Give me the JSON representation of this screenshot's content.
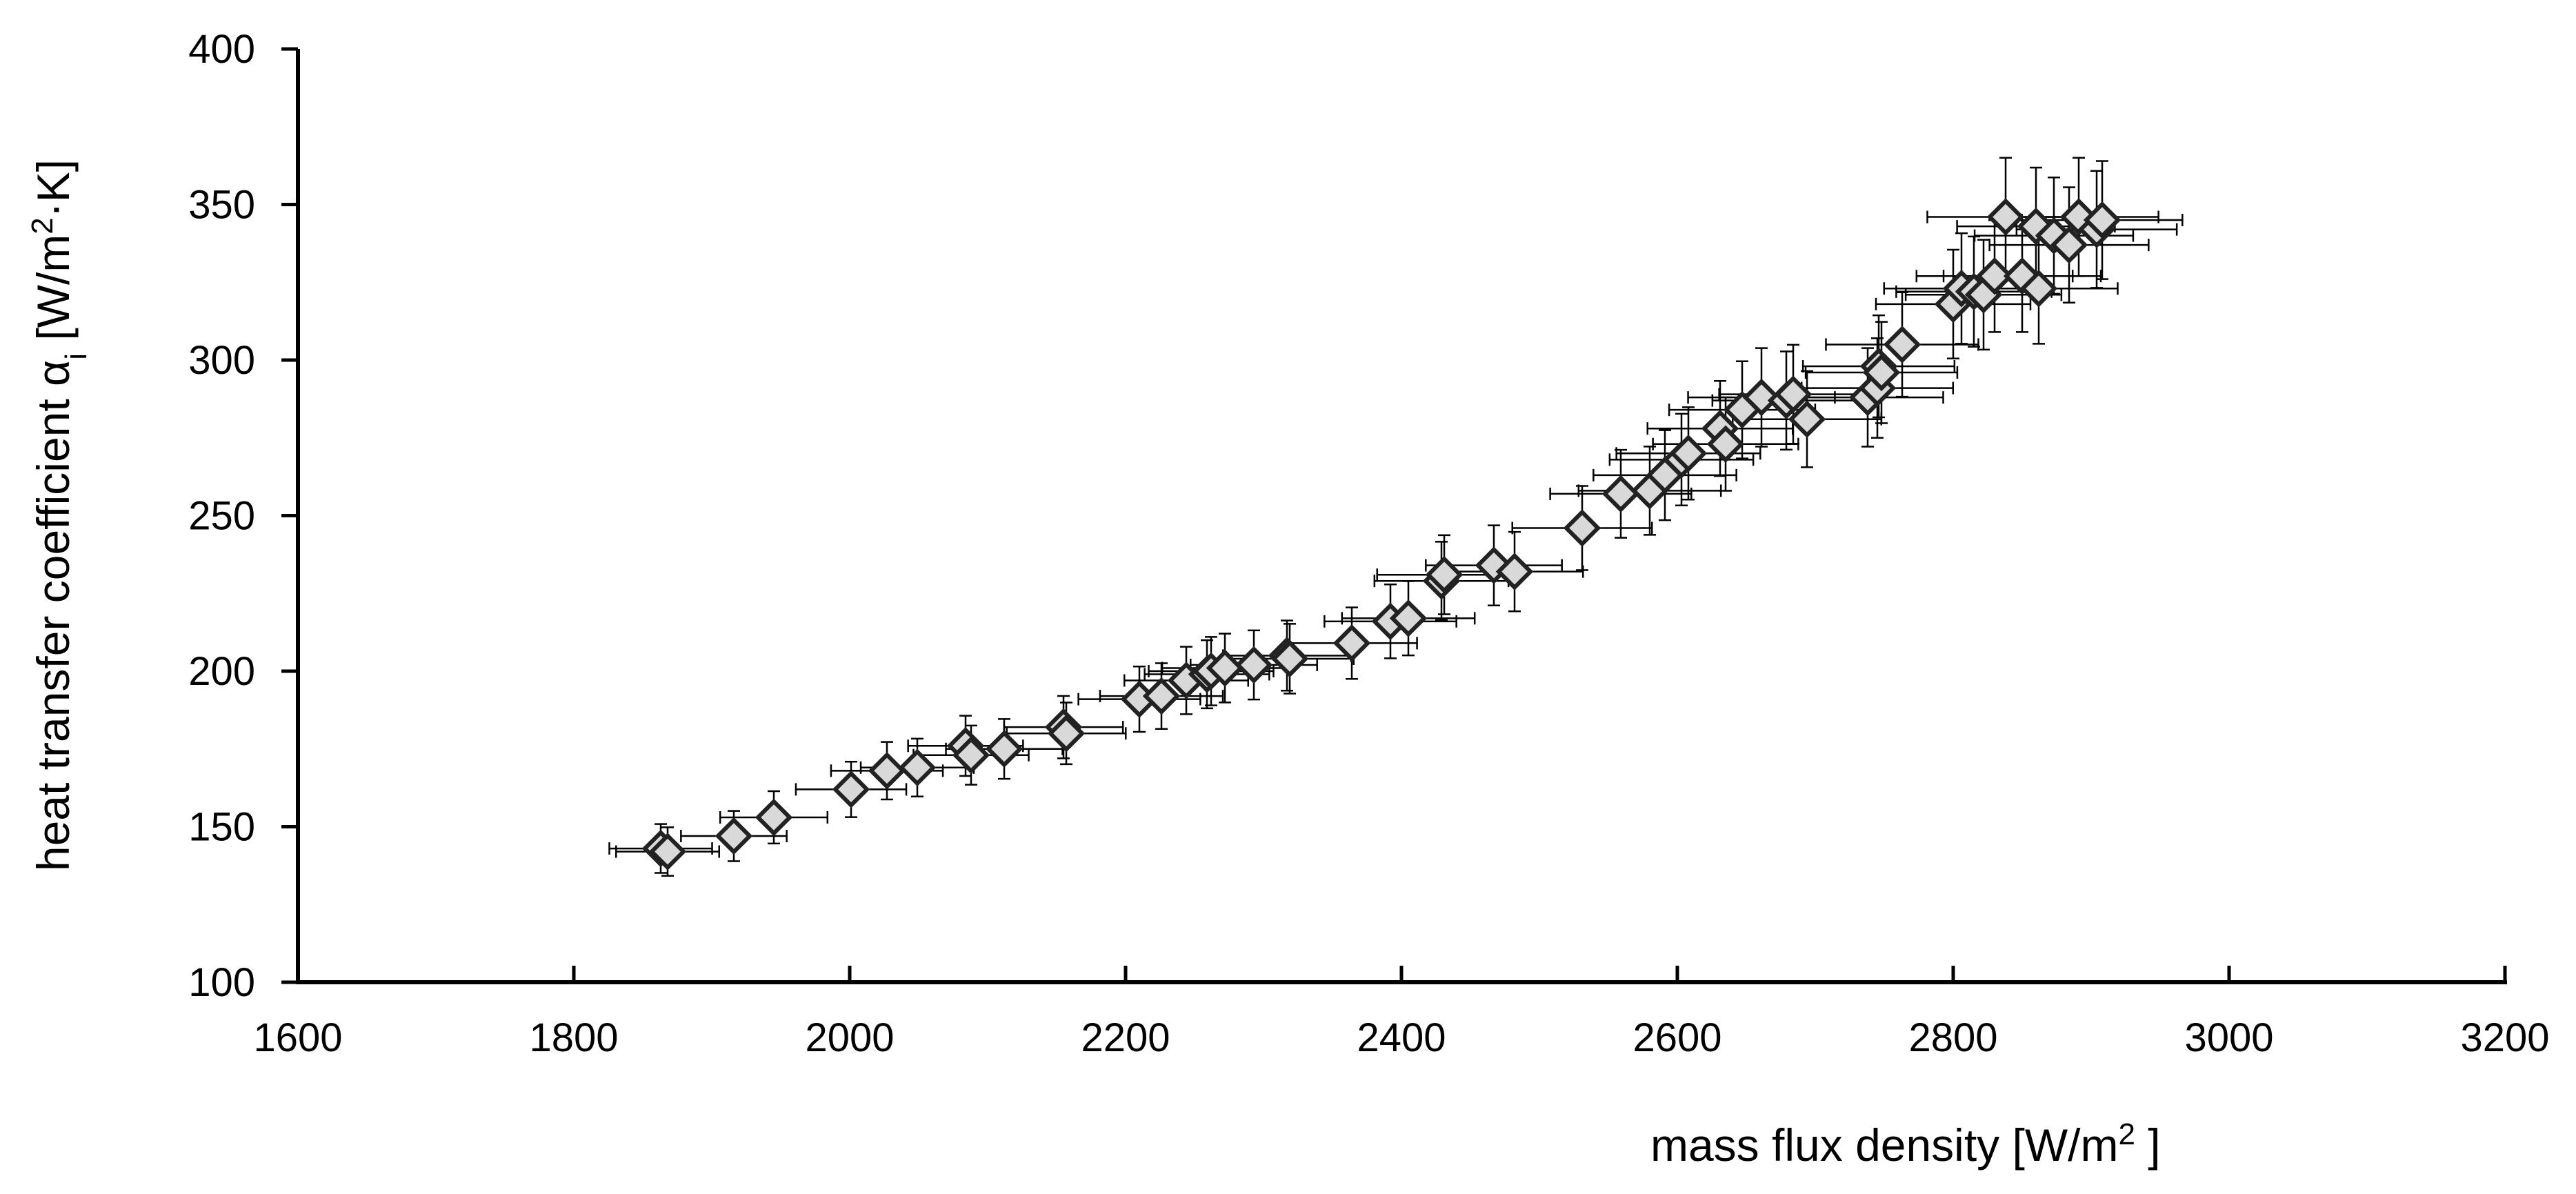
{
  "chart_data": {
    "type": "scatter",
    "xlabel": {
      "main": "mass flux density [W/m",
      "sup": "2",
      "end": " ]"
    },
    "ylabel": {
      "main": "heat transfer coefficient α",
      "sub": "i",
      "mid": " [W/m",
      "sup": "2",
      "end": "·K]"
    },
    "xlim": [
      1600,
      3200
    ],
    "ylim": [
      100,
      400
    ],
    "xticks": [
      1600,
      1800,
      2000,
      2200,
      2400,
      2600,
      2800,
      3000,
      3200
    ],
    "yticks": [
      100,
      150,
      200,
      250,
      300,
      350,
      400
    ],
    "xtick_labels": [
      "1600",
      "1800",
      "2000",
      "2200",
      "2400",
      "2600",
      "2800",
      "3000",
      "3200"
    ],
    "ytick_labels": [
      "100",
      "150",
      "200",
      "250",
      "300",
      "350",
      "400"
    ],
    "grid": false,
    "marker": {
      "shape": "diamond",
      "fill": "#d9d9d9",
      "stroke": "#222222"
    },
    "error_bars": {
      "x_relative": 0.02,
      "y_relative": 0.055
    },
    "points": [
      [
        1863,
        143
      ],
      [
        1868,
        142
      ],
      [
        1916,
        147
      ],
      [
        1945,
        153
      ],
      [
        2001,
        162
      ],
      [
        2027,
        168
      ],
      [
        2049,
        169
      ],
      [
        2084,
        176
      ],
      [
        2088,
        173
      ],
      [
        2112,
        175
      ],
      [
        2155,
        182
      ],
      [
        2157,
        180
      ],
      [
        2210,
        191
      ],
      [
        2226,
        192
      ],
      [
        2244,
        197
      ],
      [
        2259,
        199
      ],
      [
        2262,
        200
      ],
      [
        2272,
        201
      ],
      [
        2293,
        202
      ],
      [
        2317,
        205
      ],
      [
        2319,
        204
      ],
      [
        2364,
        209
      ],
      [
        2392,
        216
      ],
      [
        2405,
        217
      ],
      [
        2429,
        229
      ],
      [
        2431,
        231
      ],
      [
        2467,
        234
      ],
      [
        2482,
        232
      ],
      [
        2531,
        246
      ],
      [
        2559,
        257
      ],
      [
        2580,
        258
      ],
      [
        2591,
        263
      ],
      [
        2603,
        268
      ],
      [
        2608,
        270
      ],
      [
        2631,
        278
      ],
      [
        2635,
        273
      ],
      [
        2647,
        284
      ],
      [
        2661,
        288
      ],
      [
        2679,
        287
      ],
      [
        2684,
        289
      ],
      [
        2694,
        281
      ],
      [
        2738,
        288
      ],
      [
        2745,
        291
      ],
      [
        2746,
        298
      ],
      [
        2748,
        296
      ],
      [
        2763,
        305
      ],
      [
        2800,
        318
      ],
      [
        2806,
        323
      ],
      [
        2815,
        322
      ],
      [
        2822,
        321
      ],
      [
        2830,
        327
      ],
      [
        2838,
        346
      ],
      [
        2850,
        327
      ],
      [
        2860,
        343
      ],
      [
        2862,
        323
      ],
      [
        2873,
        340
      ],
      [
        2884,
        337
      ],
      [
        2891,
        346
      ],
      [
        2904,
        342
      ],
      [
        2908,
        345
      ]
    ]
  }
}
